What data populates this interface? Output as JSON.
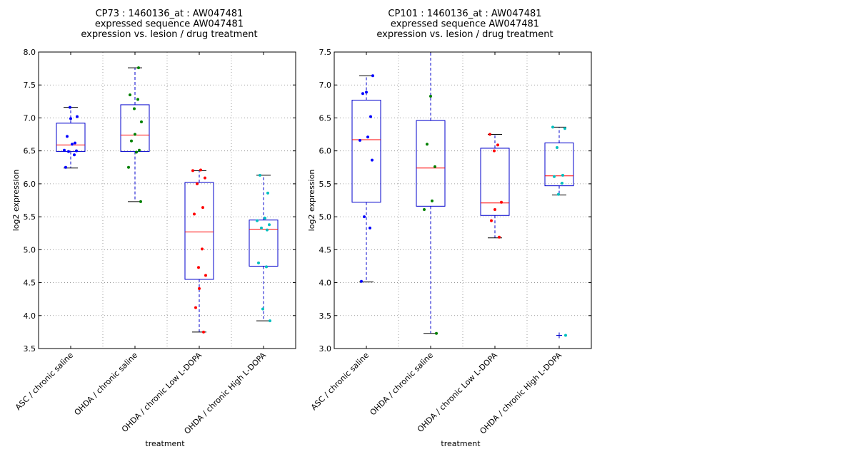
{
  "chart_data": [
    {
      "type": "box",
      "title": [
        "CP73 : 1460136_at : AW047481",
        "expressed sequence AW047481",
        "expression vs. lesion / drug treatment"
      ],
      "xlabel": "treatment",
      "ylabel": "log2 expression",
      "ylim": [
        3.5,
        8.0
      ],
      "yticks": [
        "3.5",
        "4.0",
        "4.5",
        "5.0",
        "5.5",
        "6.0",
        "6.5",
        "7.0",
        "7.5",
        "8.0"
      ],
      "grid": true,
      "categories": [
        "ASC / chronic saline",
        "OHDA / chronic saline",
        "OHDA / chronic Low L-DOPA",
        "OHDA / chronic High L-DOPA"
      ],
      "boxes": [
        {
          "whislo": 6.24,
          "q1": 6.49,
          "med": 6.59,
          "q3": 6.92,
          "whishi": 7.16,
          "fliers": []
        },
        {
          "whislo": 5.73,
          "q1": 6.49,
          "med": 6.74,
          "q3": 7.2,
          "whishi": 7.76,
          "fliers": []
        },
        {
          "whislo": 3.75,
          "q1": 4.55,
          "med": 5.27,
          "q3": 6.02,
          "whishi": 6.2,
          "fliers": []
        },
        {
          "whislo": 3.92,
          "q1": 4.75,
          "med": 5.31,
          "q3": 5.45,
          "whishi": 6.13,
          "fliers": []
        }
      ],
      "points": [
        [
          6.25,
          6.44,
          6.49,
          6.5,
          6.51,
          6.6,
          6.62,
          6.72,
          6.99,
          7.02,
          7.16
        ],
        [
          5.73,
          6.25,
          6.48,
          6.51,
          6.65,
          6.75,
          6.94,
          7.14,
          7.28,
          7.35,
          7.76
        ],
        [
          3.75,
          4.12,
          4.41,
          4.61,
          4.73,
          5.01,
          5.54,
          5.64,
          6.0,
          6.09,
          6.2,
          6.21
        ],
        [
          3.92,
          4.1,
          4.74,
          4.8,
          5.3,
          5.33,
          5.38,
          5.44,
          5.48,
          5.86,
          6.13
        ]
      ],
      "point_colors": [
        "#0000ff",
        "#008000",
        "#ff0000",
        "#00bfbf"
      ]
    },
    {
      "type": "box",
      "title": [
        "CP101 : 1460136_at : AW047481",
        "expressed sequence AW047481",
        "expression vs. lesion / drug treatment"
      ],
      "xlabel": "treatment",
      "ylabel": "log2 expression",
      "ylim": [
        3.0,
        7.5
      ],
      "yticks": [
        "3.0",
        "3.5",
        "4.0",
        "4.5",
        "5.0",
        "5.5",
        "6.0",
        "6.5",
        "7.0",
        "7.5"
      ],
      "grid": true,
      "categories": [
        "ASC / chronic saline",
        "OHDA / chronic saline",
        "OHDA / chronic Low L-DOPA",
        "OHDA / chronic High L-DOPA"
      ],
      "boxes": [
        {
          "whislo": 4.01,
          "q1": 5.22,
          "med": 6.17,
          "q3": 6.77,
          "whishi": 7.14,
          "fliers": []
        },
        {
          "whislo": 3.23,
          "q1": 5.16,
          "med": 5.74,
          "q3": 6.46,
          "whishi": 7.5,
          "fliers": []
        },
        {
          "whislo": 4.68,
          "q1": 5.02,
          "med": 5.21,
          "q3": 6.04,
          "whishi": 6.25,
          "fliers": []
        },
        {
          "whislo": 5.33,
          "q1": 5.47,
          "med": 5.62,
          "q3": 6.12,
          "whishi": 6.36,
          "fliers": [
            3.2
          ]
        }
      ],
      "points": [
        [
          4.02,
          4.83,
          5.0,
          5.86,
          6.16,
          6.21,
          6.52,
          6.87,
          6.89,
          7.14
        ],
        [
          3.23,
          5.11,
          5.24,
          5.76,
          6.1,
          6.83
        ],
        [
          4.69,
          4.94,
          5.11,
          5.22,
          6.0,
          6.09,
          6.25
        ],
        [
          3.2,
          5.34,
          5.51,
          5.61,
          5.63,
          6.05,
          6.34,
          6.36
        ]
      ],
      "point_colors": [
        "#0000ff",
        "#008000",
        "#ff0000",
        "#00bfbf"
      ]
    }
  ]
}
